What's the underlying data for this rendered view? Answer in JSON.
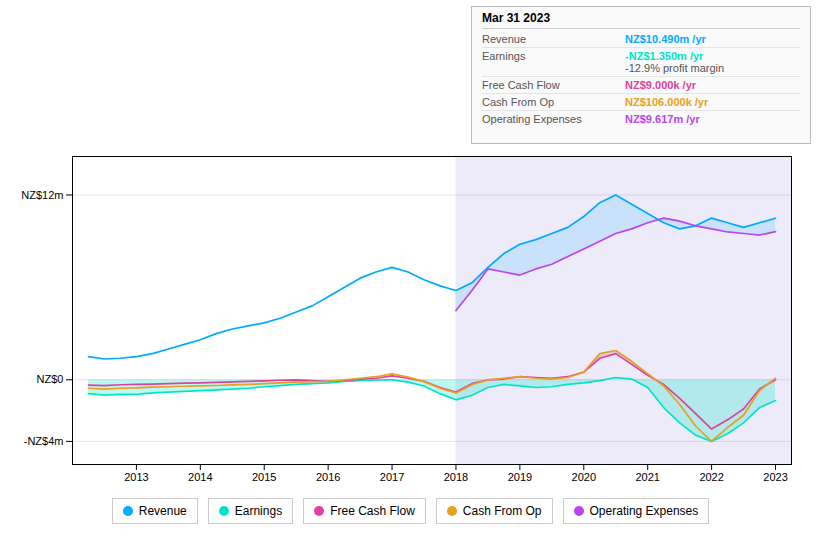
{
  "chart_data": {
    "type": "line",
    "xlim": [
      2012.0,
      2023.25
    ],
    "ylim": [
      -5.5,
      14.5
    ],
    "xticks": [
      2013,
      2014,
      2015,
      2016,
      2017,
      2018,
      2019,
      2020,
      2021,
      2022,
      2023
    ],
    "yticks": [
      {
        "value": -4,
        "label": "-NZ$4m"
      },
      {
        "value": 0,
        "label": "NZ$0"
      },
      {
        "value": 12,
        "label": "NZ$12m"
      }
    ],
    "grid": true,
    "legend": "bottom",
    "forecast_start": 2018.0,
    "x": [
      2012.25,
      2012.5,
      2012.75,
      2013.0,
      2013.25,
      2013.5,
      2013.75,
      2014.0,
      2014.25,
      2014.5,
      2014.75,
      2015.0,
      2015.25,
      2015.5,
      2015.75,
      2016.0,
      2016.25,
      2016.5,
      2016.75,
      2017.0,
      2017.25,
      2017.5,
      2017.75,
      2018.0,
      2018.25,
      2018.5,
      2018.75,
      2019.0,
      2019.25,
      2019.5,
      2019.75,
      2020.0,
      2020.25,
      2020.5,
      2020.75,
      2021.0,
      2021.25,
      2021.5,
      2021.75,
      2022.0,
      2022.25,
      2022.5,
      2022.75,
      2023.0
    ],
    "series": [
      {
        "name": "Revenue",
        "color": "#00aaff",
        "values": [
          1.5,
          1.35,
          1.4,
          1.5,
          1.7,
          2.0,
          2.3,
          2.6,
          3.0,
          3.3,
          3.5,
          3.7,
          4.0,
          4.4,
          4.8,
          5.4,
          6.0,
          6.6,
          7.0,
          7.3,
          7.0,
          6.5,
          6.1,
          5.8,
          6.3,
          7.3,
          8.2,
          8.8,
          9.1,
          9.5,
          9.9,
          10.6,
          11.5,
          12.0,
          11.4,
          10.8,
          10.2,
          9.8,
          10.0,
          10.5,
          10.2,
          9.9,
          10.2,
          10.49
        ]
      },
      {
        "name": "Earnings",
        "color": "#00e5c8",
        "values": [
          -0.9,
          -1.0,
          -0.95,
          -0.95,
          -0.85,
          -0.8,
          -0.75,
          -0.7,
          -0.65,
          -0.6,
          -0.55,
          -0.45,
          -0.38,
          -0.3,
          -0.25,
          -0.2,
          -0.1,
          -0.05,
          0.0,
          0.0,
          -0.15,
          -0.4,
          -0.9,
          -1.3,
          -1.0,
          -0.5,
          -0.3,
          -0.4,
          -0.5,
          -0.45,
          -0.3,
          -0.2,
          -0.05,
          0.15,
          0.05,
          -0.5,
          -1.8,
          -2.8,
          -3.6,
          -4.0,
          -3.5,
          -2.8,
          -1.8,
          -1.35
        ]
      },
      {
        "name": "Free Cash Flow",
        "color": "#e040a0",
        "values": [
          -0.35,
          -0.38,
          -0.32,
          -0.3,
          -0.28,
          -0.25,
          -0.22,
          -0.2,
          -0.17,
          -0.14,
          -0.1,
          -0.07,
          -0.03,
          0.0,
          -0.05,
          -0.1,
          -0.05,
          0.05,
          0.1,
          0.25,
          0.1,
          -0.1,
          -0.5,
          -0.8,
          -0.25,
          0.0,
          0.05,
          0.2,
          0.15,
          0.1,
          0.2,
          0.5,
          1.4,
          1.7,
          1.0,
          0.3,
          -0.3,
          -1.2,
          -2.2,
          -3.2,
          -2.6,
          -1.9,
          -0.6,
          0.009
        ]
      },
      {
        "name": "Cash From Op",
        "color": "#e8a020",
        "values": [
          -0.55,
          -0.6,
          -0.55,
          -0.52,
          -0.48,
          -0.45,
          -0.42,
          -0.4,
          -0.37,
          -0.33,
          -0.3,
          -0.25,
          -0.2,
          -0.15,
          -0.12,
          -0.1,
          0.0,
          0.1,
          0.2,
          0.38,
          0.18,
          -0.12,
          -0.55,
          -0.85,
          -0.32,
          0.0,
          0.1,
          0.2,
          0.1,
          0.05,
          0.15,
          0.5,
          1.7,
          1.9,
          1.2,
          0.4,
          -0.4,
          -1.6,
          -3.0,
          -4.0,
          -3.1,
          -2.3,
          -0.7,
          0.106
        ]
      },
      {
        "name": "Operating Expenses",
        "color": "#bb44ee",
        "values": [
          null,
          null,
          null,
          null,
          null,
          null,
          null,
          null,
          null,
          null,
          null,
          null,
          null,
          null,
          null,
          null,
          null,
          null,
          null,
          null,
          null,
          null,
          null,
          4.5,
          5.8,
          7.2,
          7.0,
          6.8,
          7.2,
          7.5,
          8.0,
          8.5,
          9.0,
          9.5,
          9.8,
          10.2,
          10.5,
          10.3,
          10.0,
          9.8,
          9.6,
          9.5,
          9.4,
          9.617
        ]
      }
    ],
    "annotations": [
      {
        "title": "Mar 31 2023",
        "rows": [
          {
            "label": "Revenue",
            "text": "NZ$10.490m /yr"
          },
          {
            "label": "Earnings",
            "text": "-NZ$1.350m /yr",
            "note": "-12.9% profit margin"
          },
          {
            "label": "Free Cash Flow",
            "text": "NZ$9.000k /yr"
          },
          {
            "label": "Cash From Op",
            "text": "NZ$106.000k /yr"
          },
          {
            "label": "Operating Expenses",
            "text": "NZ$9.617m /yr"
          }
        ]
      }
    ]
  }
}
